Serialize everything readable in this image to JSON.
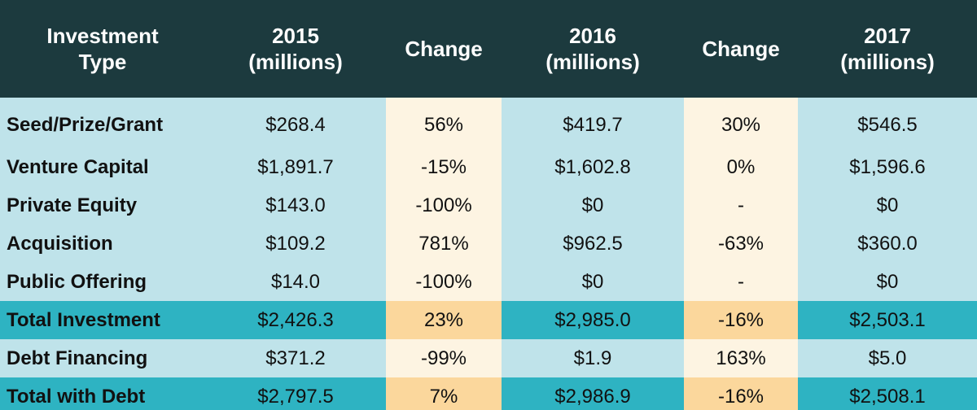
{
  "chart_data": {
    "type": "table",
    "columns": [
      "Investment Type",
      "2015 (millions)",
      "Change",
      "2016 (millions)",
      "Change",
      "2017 (millions)"
    ],
    "header": [
      [
        "Investment",
        "Type"
      ],
      [
        "2015",
        "(millions)"
      ],
      [
        "Change"
      ],
      [
        "2016",
        "(millions)"
      ],
      [
        "Change"
      ],
      [
        "2017",
        "(millions)"
      ]
    ],
    "rows": [
      {
        "type": "Seed/Prize/Grant",
        "y2015": "$268.4",
        "ch1": "56%",
        "y2016": "$419.7",
        "ch2": "30%",
        "y2017": "$546.5",
        "total": false
      },
      {
        "type": "Venture Capital",
        "y2015": "$1,891.7",
        "ch1": "-15%",
        "y2016": "$1,602.8",
        "ch2": "0%",
        "y2017": "$1,596.6",
        "total": false
      },
      {
        "type": "Private Equity",
        "y2015": "$143.0",
        "ch1": "-100%",
        "y2016": "$0",
        "ch2": "-",
        "y2017": "$0",
        "total": false
      },
      {
        "type": "Acquisition",
        "y2015": "$109.2",
        "ch1": "781%",
        "y2016": "$962.5",
        "ch2": "-63%",
        "y2017": "$360.0",
        "total": false
      },
      {
        "type": "Public Offering",
        "y2015": "$14.0",
        "ch1": "-100%",
        "y2016": "$0",
        "ch2": "-",
        "y2017": "$0",
        "total": false
      },
      {
        "type": "Total Investment",
        "y2015": "$2,426.3",
        "ch1": "23%",
        "y2016": "$2,985.0",
        "ch2": "-16%",
        "y2017": "$2,503.1",
        "total": true
      },
      {
        "type": "Debt Financing",
        "y2015": "$371.2",
        "ch1": "-99%",
        "y2016": "$1.9",
        "ch2": "163%",
        "y2017": "$5.0",
        "total": false
      },
      {
        "type": "Total with Debt",
        "y2015": "$2,797.5",
        "ch1": "7%",
        "y2016": "$2,986.9",
        "ch2": "-16%",
        "y2017": "$2,508.1",
        "total": true
      }
    ]
  },
  "colors": {
    "header_bg": "#1c3a3e",
    "value_cell": "#bfe3ea",
    "change_cell": "#fdf4e2",
    "total_value_cell": "#2eb3c2",
    "total_change_cell": "#fbd79c"
  }
}
